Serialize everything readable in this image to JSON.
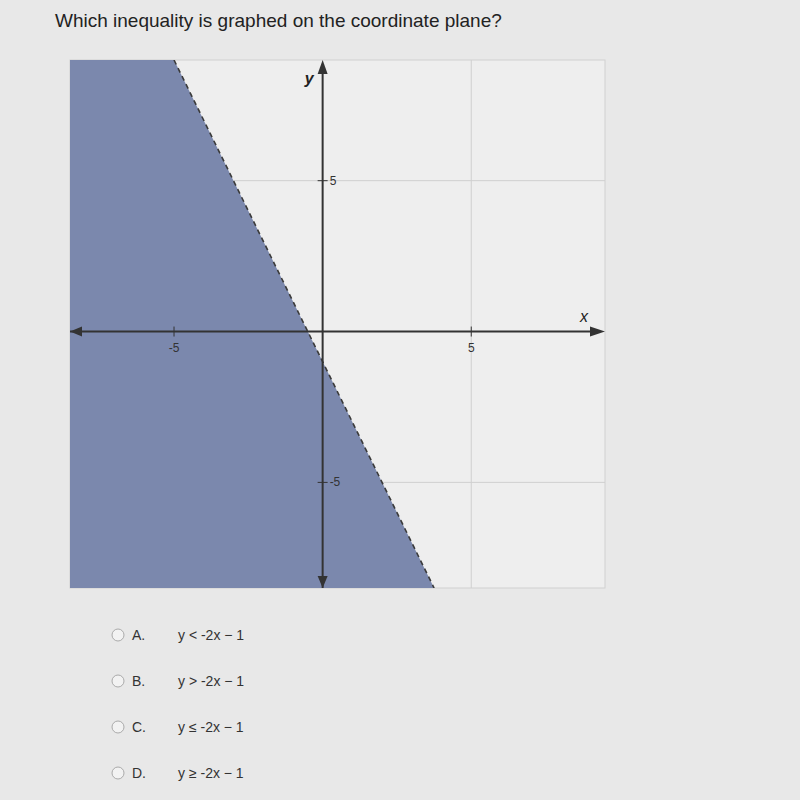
{
  "chart_data": {
    "type": "inequality",
    "title": "Which inequality is graphed on the coordinate plane?",
    "x_label": "x",
    "y_label": "y",
    "xlim": [
      -8.5,
      9.5
    ],
    "ylim": [
      -8.5,
      9
    ],
    "xticks": [
      -5,
      5
    ],
    "yticks": [
      -5,
      5
    ],
    "grid": true,
    "series": [
      {
        "type": "area",
        "color": "#7b88ad",
        "x": [
          -8.5,
          -5,
          3.75
        ],
        "values": [
          9,
          9,
          -8.5
        ]
      },
      {
        "type": "line",
        "color": "#3a3a3a",
        "line_style": "dashed",
        "x": [
          -5,
          3.75
        ],
        "values": [
          9,
          -8.5
        ]
      }
    ],
    "annotations": [
      {
        "label": "A.",
        "text": "y < -2x − 1"
      },
      {
        "label": "B.",
        "text": "y > -2x − 1"
      },
      {
        "label": "C.",
        "text": "y ≤ -2x − 1"
      },
      {
        "label": "D.",
        "text": "y ≥ -2x − 1"
      }
    ]
  }
}
